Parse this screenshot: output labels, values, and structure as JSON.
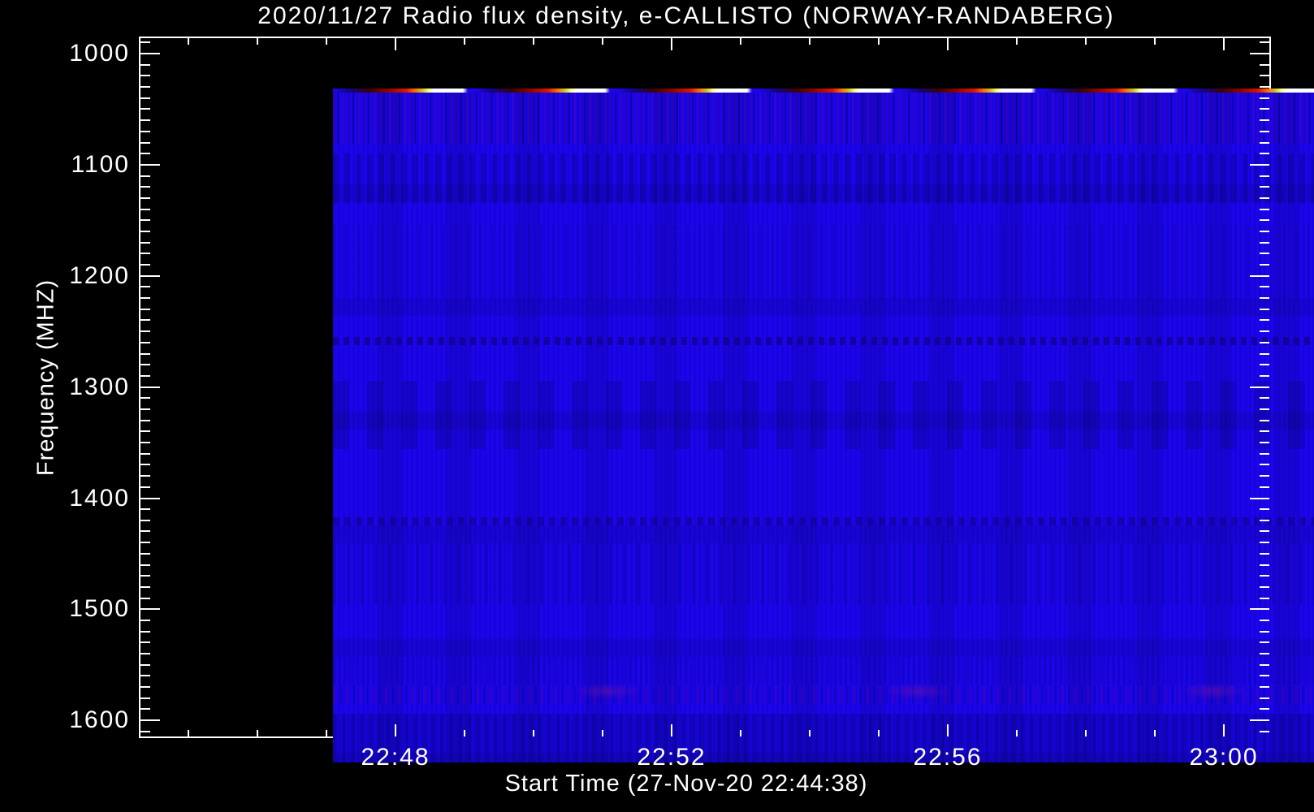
{
  "chart_data": {
    "type": "heatmap",
    "title": "2020/11/27  Radio flux density, e-CALLISTO (NORWAY-RANDABERG)",
    "date": "2020/11/27",
    "instrument_network": "e-CALLISTO",
    "station": "NORWAY-RANDABERG",
    "xlabel": "Start Time (27-Nov-20 22:44:38)",
    "ylabel": "Frequency (MHZ)",
    "x_tick_labels": [
      "22:48",
      "22:52",
      "22:56",
      "23:00"
    ],
    "x_minor_tick_interval_minutes": 1,
    "start_time": "22:44:38",
    "y_tick_labels": [
      "1000",
      "1100",
      "1200",
      "1300",
      "1400",
      "1500",
      "1600"
    ],
    "y_range_mhz": [
      1000,
      1600
    ],
    "y_axis_inverted": true,
    "y_minor_tick_interval_mhz": 10,
    "legend_position": "none",
    "grid": false,
    "colors": {
      "background": "#000000",
      "frame_and_text": "#ffffff",
      "low_flux_body": "#1b05ee",
      "burst_gradient": [
        "#3a0208",
        "#8c0400",
        "#d81800",
        "#ff6a00",
        "#c8c428",
        "#ffff8c",
        "#ffffff"
      ]
    },
    "features": {
      "body": "uniform low radio flux (deep blue) with faint vertical instrumental striping and subtle horizontal banding",
      "top_edge_burst_times_near_1000mhz": [
        "22:47",
        "22:49",
        "22:51",
        "22:53",
        "22:55",
        "22:57",
        "22:59"
      ],
      "burst_period_minutes": 2.05,
      "faint_interference_bands_mhz": [
        1230,
        1400,
        1560
      ]
    }
  }
}
